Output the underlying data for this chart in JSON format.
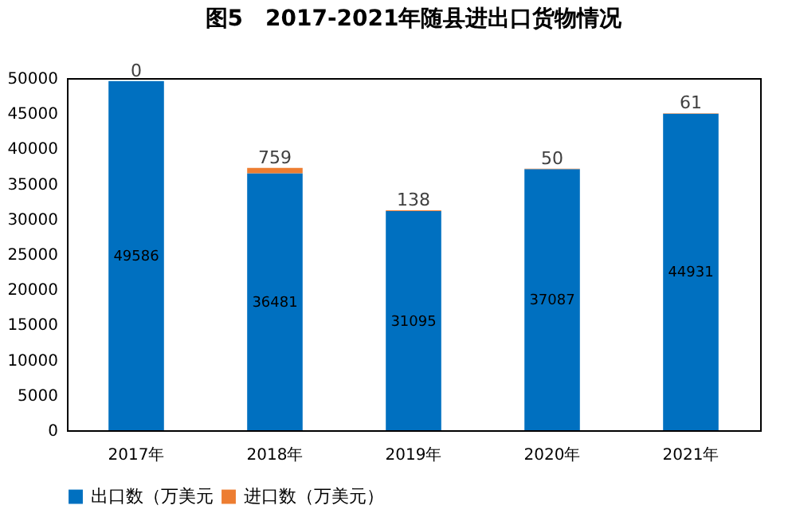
{
  "chart_data": {
    "type": "bar",
    "title": "图5　2017-2021年随县进出口货物情况",
    "categories": [
      "2017年",
      "2018年",
      "2019年",
      "2020年",
      "2021年"
    ],
    "series": [
      {
        "name": "出口数（万美元",
        "color": "#0070c0",
        "values": [
          49586,
          36481,
          31095,
          37087,
          44931
        ]
      },
      {
        "name": "进口数（万美元）",
        "color": "#ed7d31",
        "values": [
          0,
          759,
          138,
          50,
          61
        ]
      }
    ],
    "stacked": true,
    "ylim": [
      0,
      50000
    ],
    "yticks": [
      0,
      5000,
      10000,
      15000,
      20000,
      25000,
      30000,
      35000,
      40000,
      45000,
      50000
    ],
    "grid": false,
    "legend": "bottom",
    "data_labels": true
  }
}
